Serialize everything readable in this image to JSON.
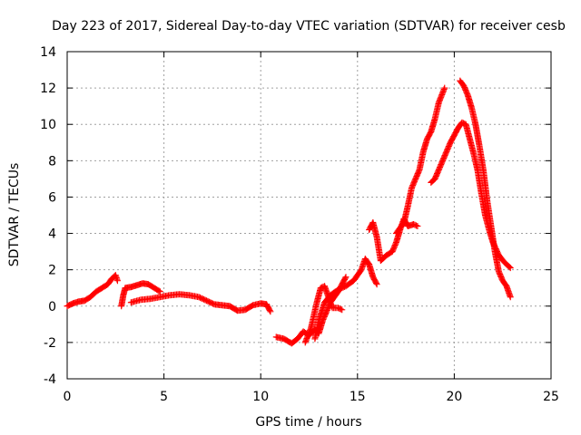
{
  "chart_data": {
    "type": "scatter",
    "title": "Day 223 of 2017, Sidereal Day-to-day VTEC variation (SDTVAR) for receiver cesb",
    "xlabel": "GPS time / hours",
    "ylabel": "SDTVAR / TECUs",
    "xlim": [
      0,
      25
    ],
    "ylim": [
      -4,
      14
    ],
    "xticks": [
      "0",
      "5",
      "10",
      "15",
      "20",
      "25"
    ],
    "yticks": [
      "-4",
      "-2",
      "0",
      "2",
      "4",
      "6",
      "8",
      "10",
      "12",
      "14"
    ],
    "grid": true,
    "series": [
      {
        "name": "SDTVAR",
        "color": "#ff0000",
        "marker": "plus",
        "segments": [
          [
            [
              0.0,
              0.0
            ],
            [
              0.3,
              0.15
            ],
            [
              0.6,
              0.25
            ],
            [
              0.9,
              0.3
            ],
            [
              1.2,
              0.5
            ],
            [
              1.5,
              0.8
            ],
            [
              1.8,
              1.0
            ],
            [
              2.1,
              1.2
            ],
            [
              2.3,
              1.5
            ],
            [
              2.5,
              1.7
            ],
            [
              2.6,
              1.4
            ]
          ],
          [
            [
              2.8,
              0.0
            ],
            [
              2.9,
              0.6
            ],
            [
              3.0,
              1.0
            ],
            [
              3.3,
              1.05
            ],
            [
              3.6,
              1.15
            ],
            [
              3.9,
              1.25
            ],
            [
              4.2,
              1.2
            ],
            [
              4.5,
              1.0
            ],
            [
              4.8,
              0.8
            ]
          ],
          [
            [
              3.3,
              0.2
            ],
            [
              3.8,
              0.35
            ],
            [
              4.3,
              0.4
            ],
            [
              4.8,
              0.5
            ],
            [
              5.3,
              0.6
            ],
            [
              5.8,
              0.65
            ],
            [
              6.3,
              0.6
            ],
            [
              6.8,
              0.5
            ],
            [
              7.2,
              0.3
            ],
            [
              7.6,
              0.1
            ],
            [
              8.0,
              0.05
            ],
            [
              8.4,
              0.0
            ],
            [
              8.8,
              -0.25
            ],
            [
              9.2,
              -0.2
            ],
            [
              9.6,
              0.05
            ],
            [
              10.0,
              0.15
            ],
            [
              10.3,
              0.1
            ],
            [
              10.5,
              -0.3
            ]
          ],
          [
            [
              10.8,
              -1.7
            ],
            [
              11.2,
              -1.8
            ],
            [
              11.6,
              -2.05
            ],
            [
              11.9,
              -1.8
            ],
            [
              12.2,
              -1.4
            ],
            [
              12.5,
              -1.6
            ],
            [
              12.8,
              -1.3
            ],
            [
              13.0,
              -1.5
            ],
            [
              13.2,
              -0.8
            ],
            [
              13.4,
              -0.3
            ],
            [
              13.6,
              0.2
            ],
            [
              13.8,
              0.5
            ],
            [
              14.0,
              0.8
            ],
            [
              14.2,
              1.2
            ],
            [
              14.4,
              1.6
            ]
          ],
          [
            [
              12.3,
              -2.0
            ],
            [
              12.6,
              -1.2
            ],
            [
              12.9,
              0.2
            ],
            [
              13.1,
              1.0
            ],
            [
              13.3,
              1.1
            ],
            [
              13.5,
              0.5
            ],
            [
              13.7,
              -0.1
            ],
            [
              14.0,
              -0.1
            ],
            [
              14.2,
              -0.2
            ]
          ],
          [
            [
              12.8,
              -1.8
            ],
            [
              13.0,
              -0.8
            ],
            [
              13.3,
              0.2
            ],
            [
              13.6,
              0.6
            ],
            [
              14.0,
              0.9
            ],
            [
              14.4,
              1.1
            ],
            [
              14.8,
              1.4
            ],
            [
              15.2,
              2.0
            ],
            [
              15.4,
              2.6
            ],
            [
              15.6,
              2.3
            ],
            [
              15.8,
              1.6
            ],
            [
              16.0,
              1.2
            ]
          ],
          [
            [
              15.6,
              4.2
            ],
            [
              15.8,
              4.6
            ],
            [
              16.0,
              3.8
            ],
            [
              16.2,
              2.5
            ],
            [
              16.5,
              2.8
            ],
            [
              16.8,
              3.0
            ],
            [
              17.0,
              3.5
            ],
            [
              17.2,
              4.2
            ],
            [
              17.4,
              4.8
            ],
            [
              17.6,
              4.4
            ],
            [
              17.9,
              4.5
            ],
            [
              18.1,
              4.4
            ]
          ],
          [
            [
              17.0,
              4.0
            ],
            [
              17.4,
              4.6
            ],
            [
              17.6,
              5.5
            ],
            [
              17.8,
              6.5
            ],
            [
              18.0,
              7.0
            ],
            [
              18.2,
              7.5
            ],
            [
              18.4,
              8.5
            ],
            [
              18.6,
              9.2
            ],
            [
              18.8,
              9.6
            ],
            [
              19.0,
              10.3
            ],
            [
              19.2,
              11.2
            ],
            [
              19.5,
              12.0
            ]
          ],
          [
            [
              18.8,
              6.8
            ],
            [
              19.0,
              7.0
            ],
            [
              19.2,
              7.5
            ],
            [
              19.4,
              8.0
            ],
            [
              19.6,
              8.5
            ],
            [
              19.8,
              9.0
            ],
            [
              20.0,
              9.4
            ],
            [
              20.2,
              9.8
            ],
            [
              20.4,
              10.1
            ],
            [
              20.6,
              10.0
            ],
            [
              20.8,
              9.2
            ],
            [
              21.0,
              8.4
            ],
            [
              21.2,
              7.5
            ],
            [
              21.4,
              6.2
            ],
            [
              21.6,
              5.0
            ],
            [
              21.8,
              4.2
            ],
            [
              22.0,
              3.5
            ],
            [
              22.3,
              2.8
            ],
            [
              22.6,
              2.4
            ],
            [
              22.9,
              2.1
            ]
          ],
          [
            [
              20.3,
              12.4
            ],
            [
              20.5,
              12.1
            ],
            [
              20.7,
              11.6
            ],
            [
              20.9,
              10.9
            ],
            [
              21.1,
              10.0
            ],
            [
              21.3,
              8.8
            ],
            [
              21.5,
              7.5
            ],
            [
              21.7,
              5.8
            ],
            [
              21.9,
              4.4
            ],
            [
              22.1,
              3.0
            ],
            [
              22.3,
              1.9
            ],
            [
              22.5,
              1.4
            ],
            [
              22.7,
              1.1
            ],
            [
              22.9,
              0.5
            ]
          ]
        ]
      }
    ]
  }
}
